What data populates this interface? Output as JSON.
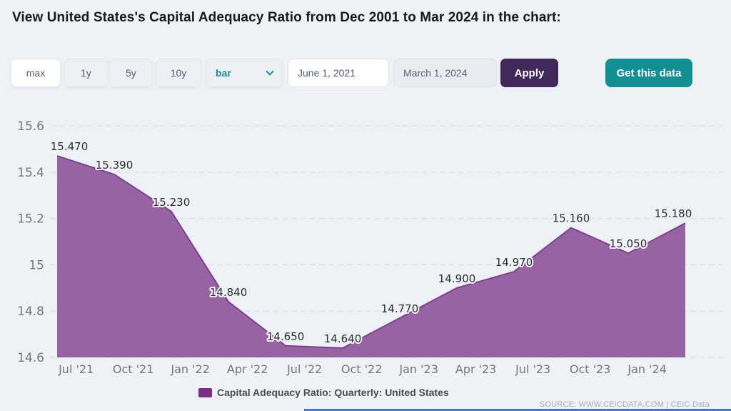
{
  "page": {
    "title": "View United States's Capital Adequacy Ratio from Dec 2001 to Mar 2024 in the chart:",
    "source_text": "SOURCE: WWW.CEICDATA.COM | CEIC Data"
  },
  "toolbar": {
    "range_buttons": [
      "max",
      "1y",
      "5y",
      "10y"
    ],
    "active_range": "max",
    "chart_type_select": {
      "value": "bar"
    },
    "date_from": "June 1, 2021",
    "date_to": "March 1, 2024",
    "apply_label": "Apply",
    "get_data_label": "Get this data"
  },
  "chart_data": {
    "type": "area",
    "title": "Capital Adequacy Ratio: Quarterly: United States",
    "x": [
      "Jun 2021",
      "Sep 2021",
      "Dec 2021",
      "Mar 2022",
      "Jun 2022",
      "Sep 2022",
      "Dec 2022",
      "Mar 2023",
      "Jun 2023",
      "Sep 2023",
      "Dec 2023",
      "Mar 2024"
    ],
    "values": [
      15.47,
      15.39,
      15.23,
      14.84,
      14.65,
      14.64,
      14.77,
      14.9,
      14.97,
      15.16,
      15.05,
      15.18
    ],
    "labels": [
      "15.470",
      "15.390",
      "15.230",
      "14.840",
      "14.650",
      "14.640",
      "14.770",
      "14.900",
      "14.970",
      "15.160",
      "15.050",
      "15.180"
    ],
    "x_tick_labels": [
      "Jul '21",
      "Oct '21",
      "Jan '22",
      "Apr '22",
      "Jul '22",
      "Oct '22",
      "Jan '23",
      "Apr '23",
      "Jul '23",
      "Oct '23",
      "Jan '24"
    ],
    "y_ticks": [
      15.6,
      15.4,
      15.2,
      15.0,
      14.8,
      14.6
    ],
    "y_tick_labels": [
      "15.6",
      "15.4",
      "15.2",
      "15",
      "14.8",
      "14.6"
    ],
    "ylim": [
      14.6,
      15.6
    ],
    "grid": true,
    "legend": "Capital Adequacy Ratio: Quarterly: United States",
    "legend_position": "bottom",
    "series_color": "#9863a3",
    "line_color": "#7c4190",
    "legend_swatch_color": "#7b2f8b"
  },
  "colors": {
    "background": "#eef1f5",
    "teal": "#129094",
    "purple_dark": "#42295c",
    "series_fill": "#9863a3",
    "series_line": "#7c4190",
    "legend_swatch": "#7b2f8b",
    "footer_bar_blue": "#4a74c4"
  }
}
